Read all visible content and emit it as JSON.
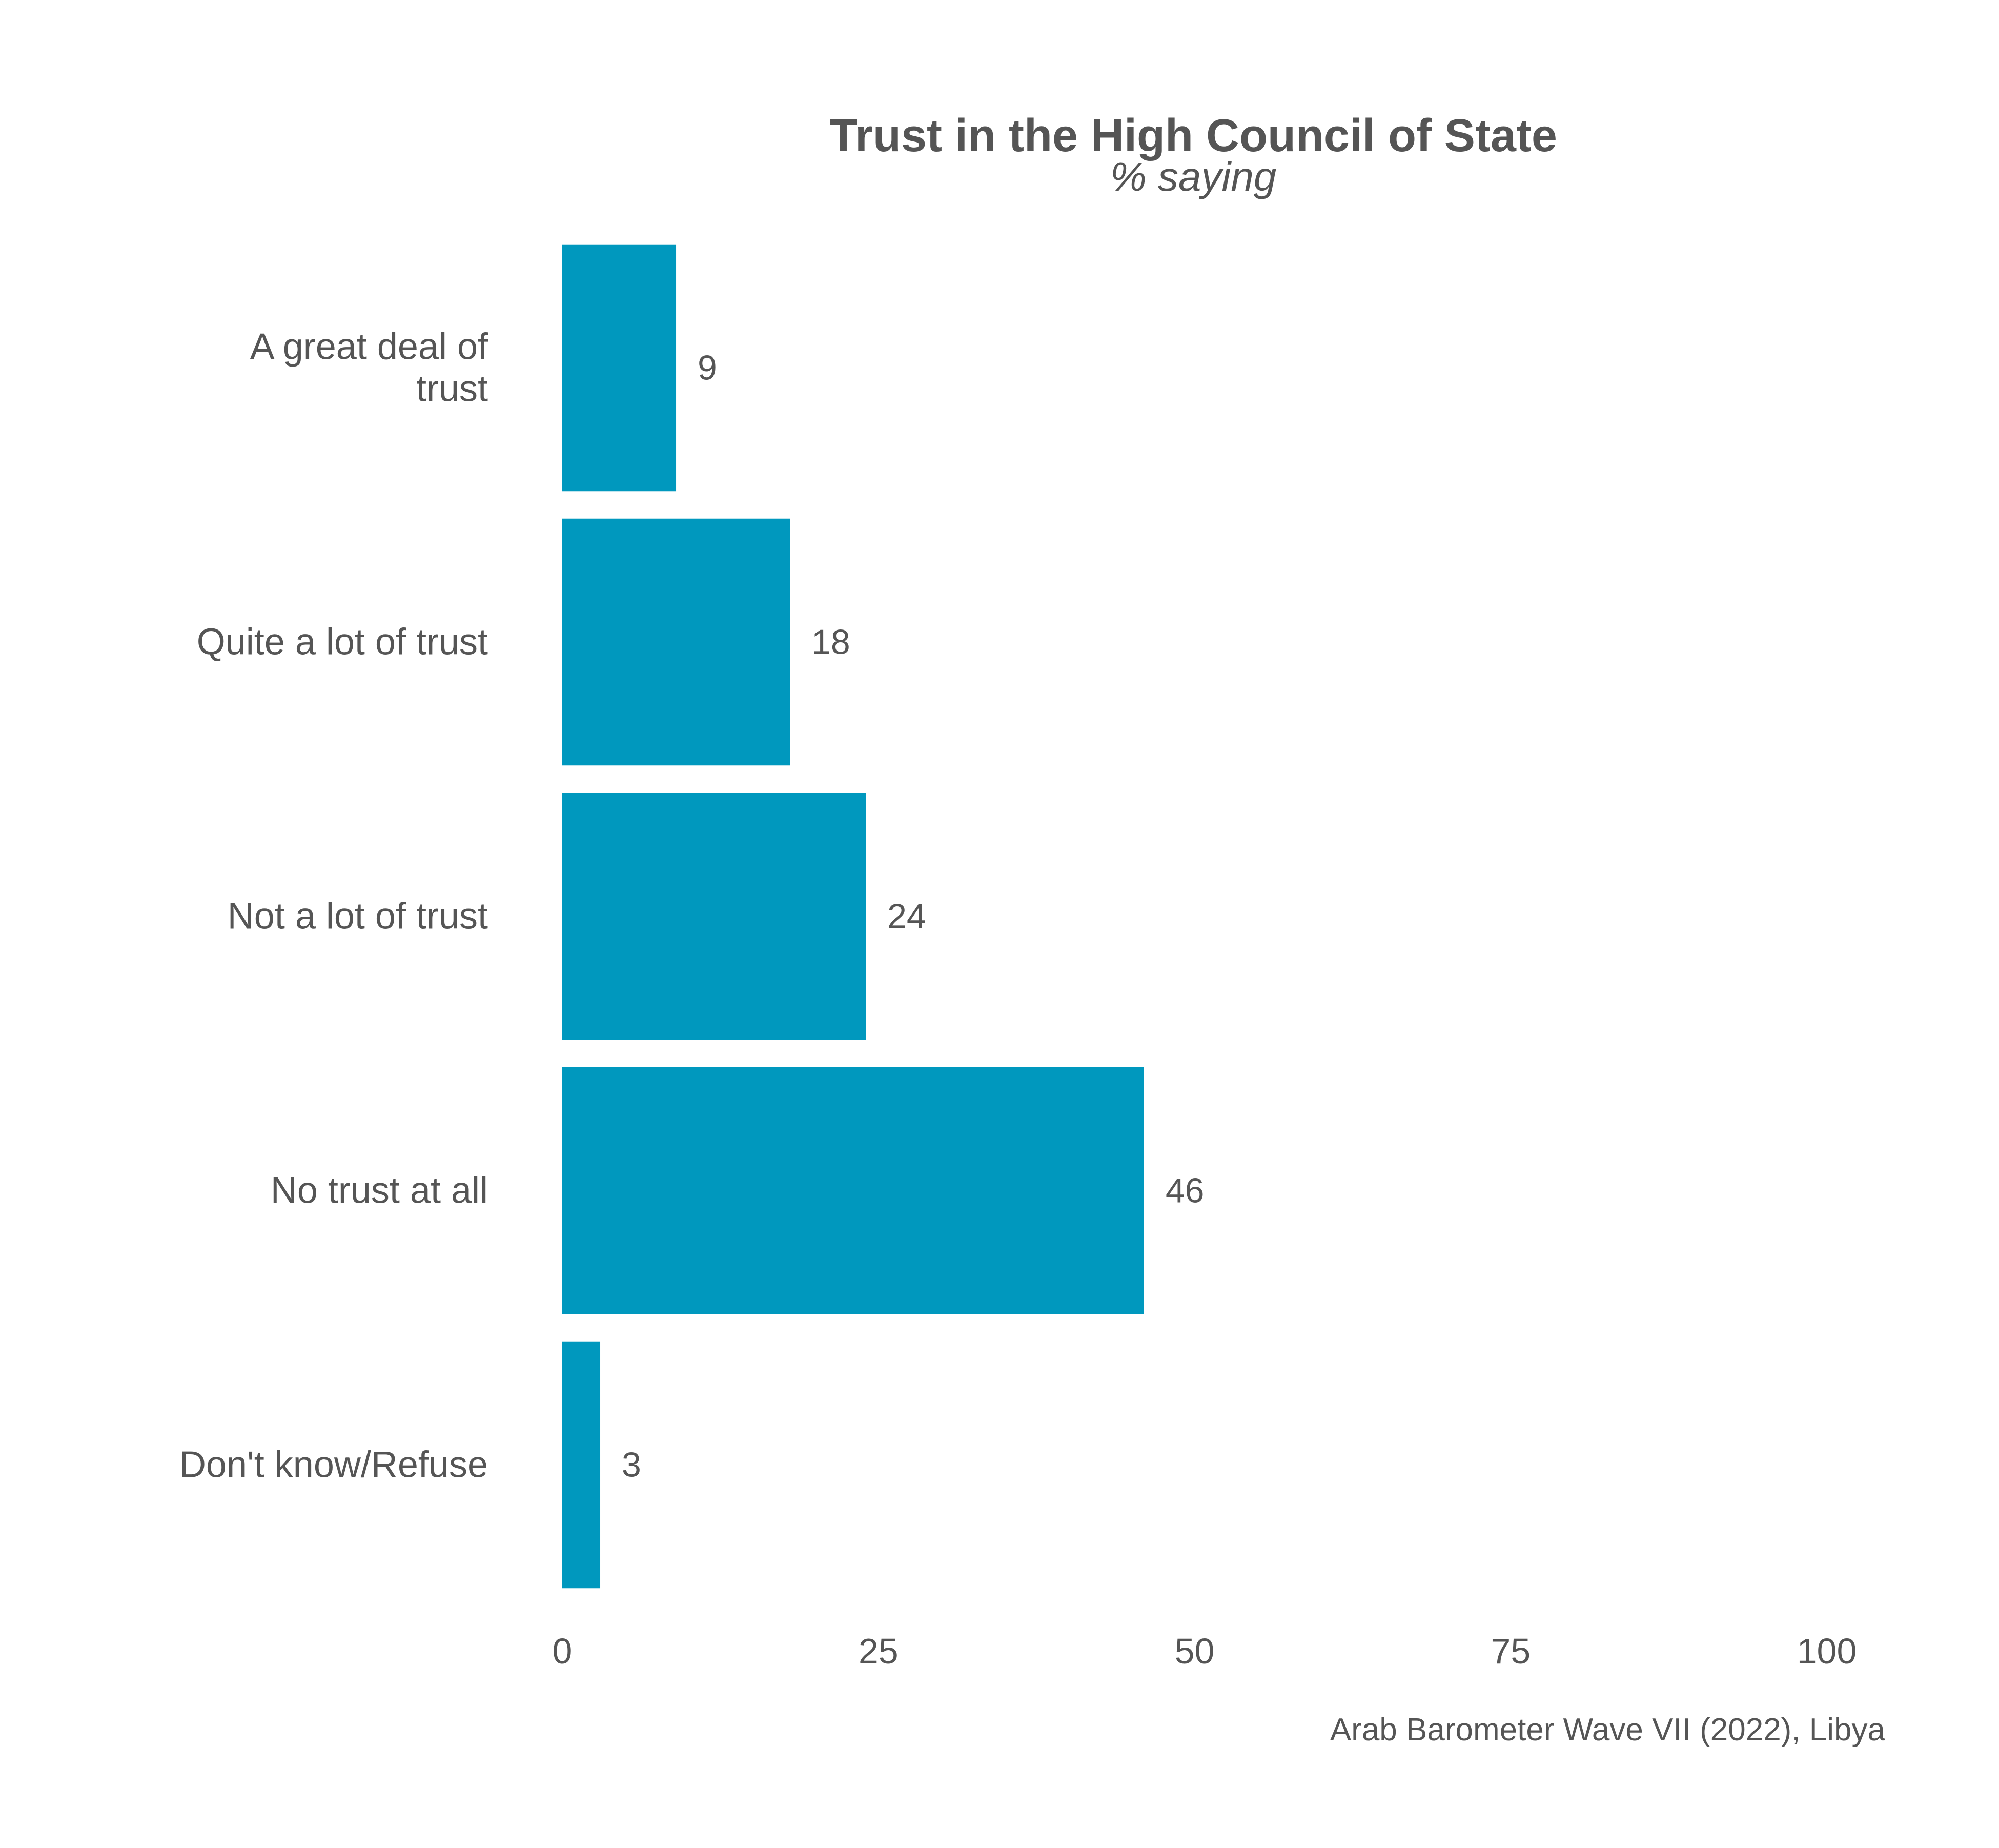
{
  "chart_data": {
    "type": "bar",
    "orientation": "horizontal",
    "title": "Trust in the High Council of State",
    "subtitle": "% saying",
    "categories": [
      [
        "A great deal of",
        "trust"
      ],
      [
        "Quite a lot of trust"
      ],
      [
        "Not a lot of trust"
      ],
      [
        "No trust at all"
      ],
      [
        "Don't know/Refuse"
      ]
    ],
    "values": [
      9,
      18,
      24,
      46,
      3
    ],
    "value_labels": [
      "9",
      "18",
      "24",
      "46",
      "3"
    ],
    "xlim": [
      0,
      100
    ],
    "xticks": [
      0,
      25,
      50,
      75,
      100
    ],
    "xtick_labels": [
      "0",
      "25",
      "50",
      "75",
      "100"
    ],
    "xlabel": "",
    "ylabel": "",
    "grid": false,
    "legend": "none",
    "bar_color": "#0098BE",
    "text_color": "#555555",
    "caption": "Arab Barometer Wave VII (2022), Libya"
  }
}
